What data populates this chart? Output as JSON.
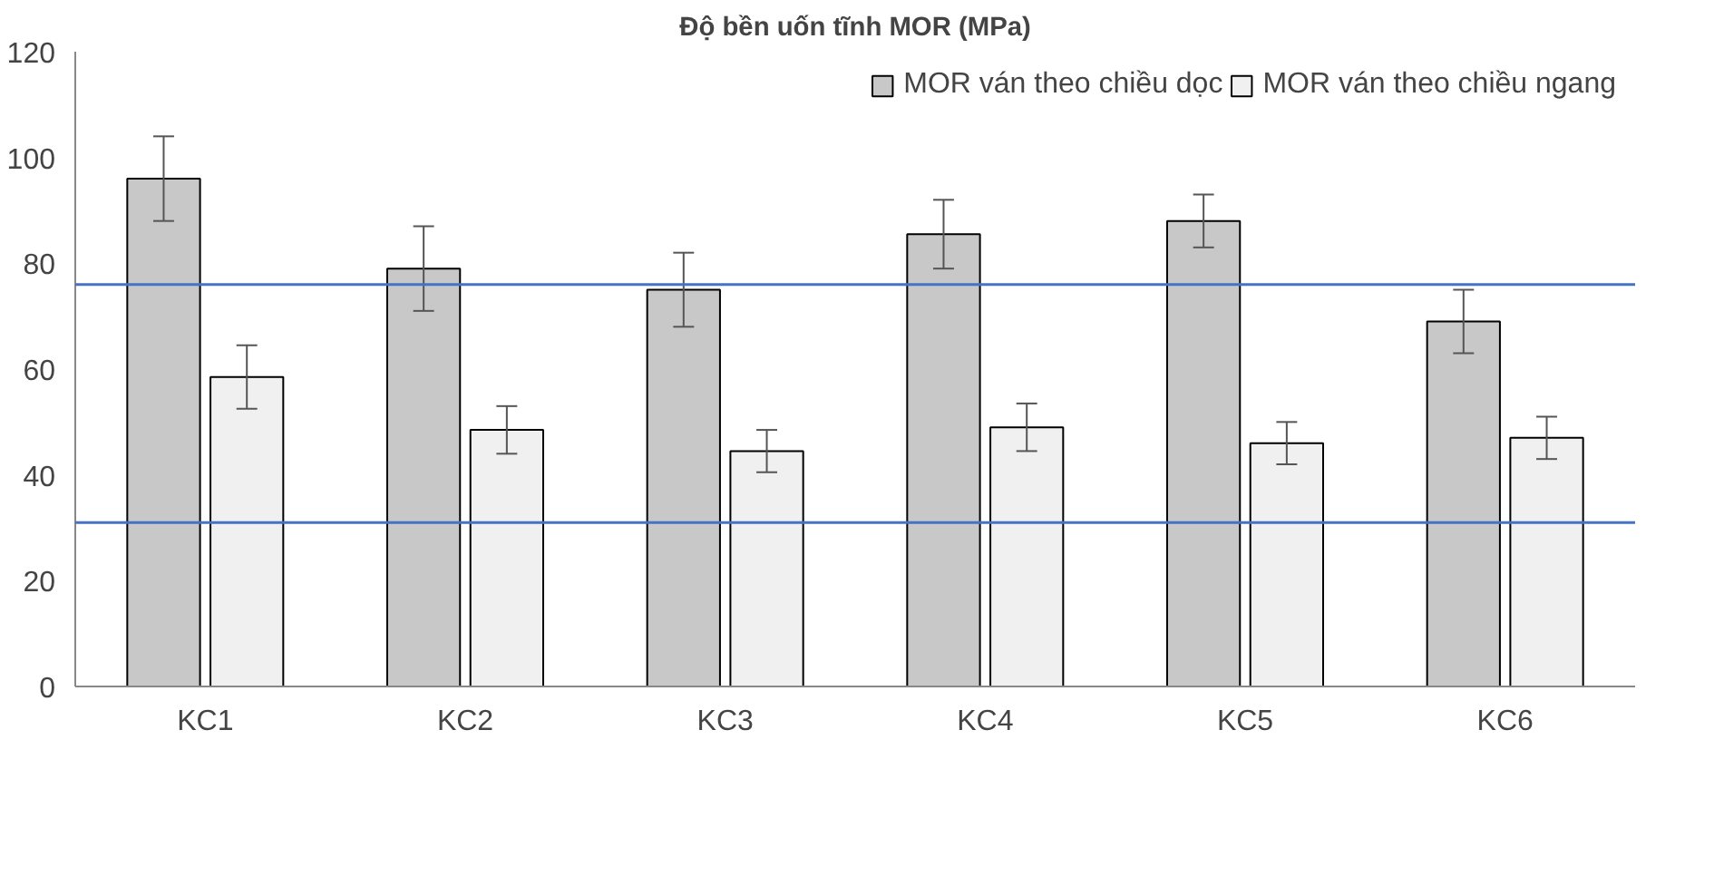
{
  "chart_data": {
    "type": "bar",
    "title": "Độ bền uốn tĩnh MOR (MPa)",
    "categories": [
      "KC1",
      "KC2",
      "KC3",
      "KC4",
      "KC5",
      "KC6"
    ],
    "series": [
      {
        "name": "MOR ván theo chiều dọc",
        "color": "#c8c8c8",
        "values": [
          96,
          79,
          75,
          85.5,
          88,
          69
        ],
        "errors": [
          8,
          8,
          7,
          6.5,
          5,
          6
        ]
      },
      {
        "name": "MOR ván theo chiều ngang",
        "color": "#f0f0f0",
        "values": [
          58.5,
          48.5,
          44.5,
          49,
          46,
          47
        ],
        "errors": [
          6,
          4.5,
          4,
          4.5,
          4,
          4
        ]
      }
    ],
    "ylim": [
      0,
      120
    ],
    "yticks": [
      0,
      20,
      40,
      60,
      80,
      100,
      120
    ],
    "grid": false,
    "legend": "top right",
    "ref_lines": [
      {
        "axis": "y",
        "value": 76,
        "color": "#4472c4"
      },
      {
        "axis": "y",
        "value": 31,
        "color": "#4472c4"
      }
    ]
  }
}
